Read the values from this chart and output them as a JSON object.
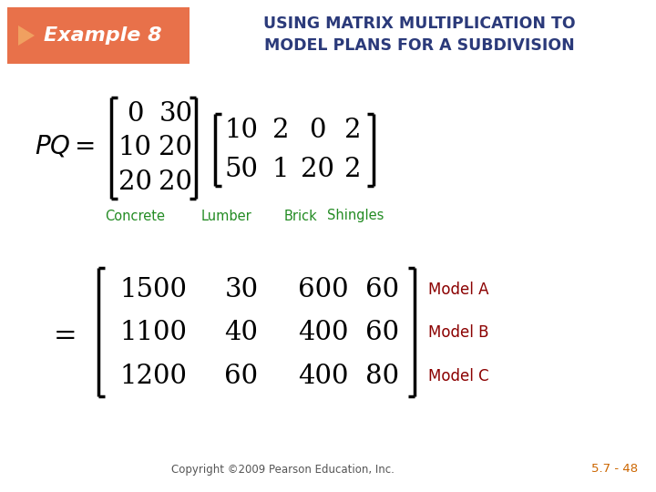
{
  "header_bg_color": "#E8714A",
  "header_arrow_color": "#F0A060",
  "header_text_color": "#FFFFFF",
  "example_label": "Example 8",
  "title_line1": "USING MATRIX MULTIPLICATION TO",
  "title_line2": "MODEL PLANS FOR A SUBDIVISION",
  "title_color": "#2B3A7A",
  "matrix_P": [
    [
      0,
      30
    ],
    [
      10,
      20
    ],
    [
      20,
      20
    ]
  ],
  "matrix_Q": [
    [
      10,
      2,
      0,
      2
    ],
    [
      50,
      1,
      20,
      2
    ]
  ],
  "col_labels": [
    "Concrete",
    "Lumber",
    "Brick",
    "Shingles"
  ],
  "col_label_color": "#228B22",
  "result_matrix": [
    [
      1500,
      30,
      600,
      60
    ],
    [
      1100,
      40,
      400,
      60
    ],
    [
      1200,
      60,
      400,
      80
    ]
  ],
  "model_labels": [
    "Model A",
    "Model B",
    "Model C"
  ],
  "model_label_color": "#8B0000",
  "copyright_text": "Copyright ©2009 Pearson Education, Inc.",
  "page_ref": "5.7 - 48",
  "page_ref_color": "#CC6600",
  "background_color": "#FFFFFF",
  "matrix_color": "#000000"
}
